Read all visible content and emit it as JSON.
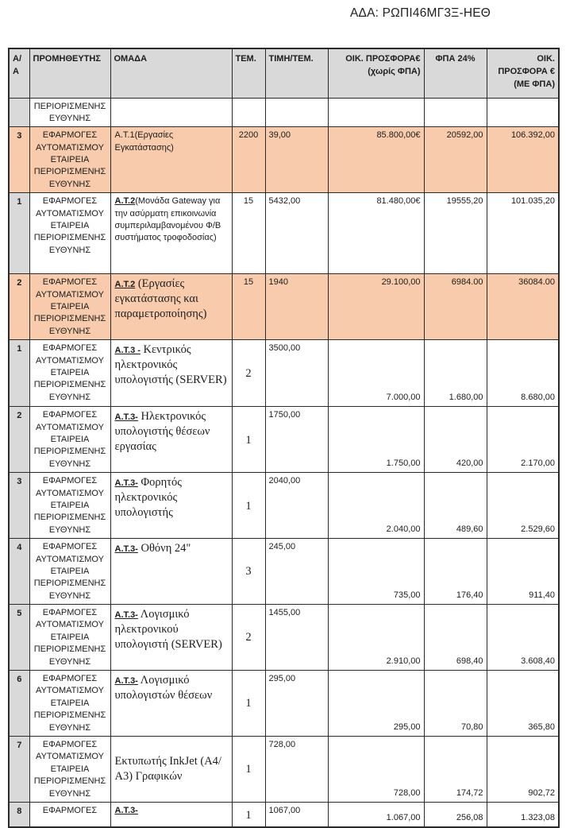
{
  "page": {
    "ada": "ΑΔΑ: ΡΩΠΙ46ΜΓ3Ξ-ΗΕΘ"
  },
  "colors": {
    "highlight_row": "#F7CBAC",
    "header_bg": "#D9D9D9",
    "border": "#2A2A2A"
  },
  "table": {
    "headers": {
      "aa": "Α/Α",
      "supplier": "ΠΡΟΜΗΘΕΥΤΗΣ",
      "group": "ΟΜΑΔΑ",
      "qty": "ΤΕΜ.",
      "unit_price": "ΤΙΜΗ/ΤΕΜ.",
      "offer_net": "ΟΙΚ. ΠΡΟΣΦΟΡΑ€(χωρίς ΦΠΑ)",
      "vat": "ΦΠΑ 24%",
      "offer_gross": "ΟΙΚ. ΠΡΟΣΦΟΡΑ € (ΜΕ ΦΠΑ)"
    },
    "rows": [
      {
        "aa": "",
        "supplier": "ΠΕΡΙΟΡΙΣΜΕΝΗΣ ΕΥΘΥΝΗΣ",
        "group_code": "",
        "group_desc": "",
        "qty": "",
        "unit_price": "",
        "offer_net": "",
        "vat": "",
        "offer_gross": "",
        "highlighted": false
      },
      {
        "aa": "3",
        "supplier": "ΕΦΑΡΜΟΓΕΣ ΑΥΤΟΜΑΤΙΣΜΟΥ ΕΤΑΙΡΕΙΑ ΠΕΡΙΟΡΙΣΜΕΝΗΣ ΕΥΘΥΝΗΣ",
        "group_code": "",
        "group_desc": "Α.Τ.1(Εργασίες Εγκατάστασης)",
        "qty": "2200",
        "unit_price": "39,00",
        "offer_net": "85.800,00€",
        "vat": "20592,00",
        "offer_gross": "106.392,00",
        "highlighted": true
      },
      {
        "aa": "1",
        "supplier": "ΕΦΑΡΜΟΓΕΣ ΑΥΤΟΜΑΤΙΣΜΟΥ ΕΤΑΙΡΕΙΑ ΠΕΡΙΟΡΙΣΜΕΝΗΣ ΕΥΘΥΝΗΣ",
        "group_code": "Α.Τ.2",
        "group_desc": "(Μονάδα Gateway για την ασύρματη επικοινωνία συμπεριλαμβανομένου Φ/Β συστήματος τροφοδοσίας)",
        "qty": "15",
        "unit_price": "5432,00",
        "offer_net": "81.480,00€",
        "vat": "19555,20",
        "offer_gross": "101.035,20",
        "highlighted": false
      },
      {
        "aa": "2",
        "supplier": "ΕΦΑΡΜΟΓΕΣ ΑΥΤΟΜΑΤΙΣΜΟΥ ΕΤΑΙΡΕΙΑ ΠΕΡΙΟΡΙΣΜΕΝΗΣ ΕΥΘΥΝΗΣ",
        "group_code": "Α.Τ.2",
        "group_desc": " (Εργασίες εγκατάστασης και παραμετροποίησης)",
        "qty": "15",
        "unit_price": "1940",
        "offer_net": "29.100,00",
        "vat": "6984.00",
        "offer_gross": "36084.00",
        "highlighted": true
      },
      {
        "aa": "1",
        "supplier": "ΕΦΑΡΜΟΓΕΣ ΑΥΤΟΜΑΤΙΣΜΟΥ ΕΤΑΙΡΕΙΑ ΠΕΡΙΟΡΙΣΜΕΝΗΣ ΕΥΘΥΝΗΣ",
        "group_code": "Α.Τ.3 -",
        "group_desc": " Κεντρικός ηλεκτρονικός υπολογιστής (SERVER)",
        "qty": "2",
        "unit_price": "3500,00",
        "offer_net": "7.000,00",
        "vat": "1.680,00",
        "offer_gross": "8.680,00",
        "highlighted": false
      },
      {
        "aa": "2",
        "supplier": "ΕΦΑΡΜΟΓΕΣ ΑΥΤΟΜΑΤΙΣΜΟΥ ΕΤΑΙΡΕΙΑ ΠΕΡΙΟΡΙΣΜΕΝΗΣ ΕΥΘΥΝΗΣ",
        "group_code": "Α.Τ.3-",
        "group_desc": " Ηλεκτρονικός υπολογιστής θέσεων εργασίας",
        "qty": "1",
        "unit_price": "1750,00",
        "offer_net": "1.750,00",
        "vat": "420,00",
        "offer_gross": "2.170,00",
        "highlighted": false
      },
      {
        "aa": "3",
        "supplier": "ΕΦΑΡΜΟΓΕΣ ΑΥΤΟΜΑΤΙΣΜΟΥ ΕΤΑΙΡΕΙΑ ΠΕΡΙΟΡΙΣΜΕΝΗΣ ΕΥΘΥΝΗΣ",
        "group_code": "Α.Τ.3-",
        "group_desc": " Φορητός ηλεκτρονικός υπολογιστής",
        "qty": "1",
        "unit_price": "2040,00",
        "offer_net": "2.040,00",
        "vat": "489,60",
        "offer_gross": "2.529,60",
        "highlighted": false
      },
      {
        "aa": "4",
        "supplier": "ΕΦΑΡΜΟΓΕΣ ΑΥΤΟΜΑΤΙΣΜΟΥ ΕΤΑΙΡΕΙΑ ΠΕΡΙΟΡΙΣΜΕΝΗΣ ΕΥΘΥΝΗΣ",
        "group_code": "Α.Τ.3-",
        "group_desc": " Οθόνη 24\"",
        "qty": "3",
        "unit_price": "245,00",
        "offer_net": "735,00",
        "vat": "176,40",
        "offer_gross": "911,40",
        "highlighted": false
      },
      {
        "aa": "5",
        "supplier": "ΕΦΑΡΜΟΓΕΣ ΑΥΤΟΜΑΤΙΣΜΟΥ ΕΤΑΙΡΕΙΑ ΠΕΡΙΟΡΙΣΜΕΝΗΣ ΕΥΘΥΝΗΣ",
        "group_code": "Α.Τ.3-",
        "group_desc": " Λογισμικό ηλεκτρονικού υπολογιστή (SERVER)",
        "qty": "2",
        "unit_price": "1455,00",
        "offer_net": "2.910,00",
        "vat": "698,40",
        "offer_gross": "3.608,40",
        "highlighted": false
      },
      {
        "aa": "6",
        "supplier": "ΕΦΑΡΜΟΓΕΣ ΑΥΤΟΜΑΤΙΣΜΟΥ ΕΤΑΙΡΕΙΑ ΠΕΡΙΟΡΙΣΜΕΝΗΣ ΕΥΘΥΝΗΣ",
        "group_code": "Α.Τ.3-",
        "group_desc": " Λογισμικό υπολογιστών θέσεων",
        "qty": "1",
        "unit_price": "295,00",
        "offer_net": "295,00",
        "vat": "70,80",
        "offer_gross": "365,80",
        "highlighted": false
      },
      {
        "aa": "7",
        "supplier": "ΕΦΑΡΜΟΓΕΣ ΑΥΤΟΜΑΤΙΣΜΟΥ ΕΤΑΙΡΕΙΑ ΠΕΡΙΟΡΙΣΜΕΝΗΣ ΕΥΘΥΝΗΣ",
        "group_code": "",
        "group_desc": "Εκτυπωτής InkJet (Α4/Α3) Γραφικών",
        "qty": "1",
        "unit_price": "728,00",
        "offer_net": "728,00",
        "vat": "174,72",
        "offer_gross": "902,72",
        "highlighted": false
      },
      {
        "aa": "8",
        "supplier": "ΕΦΑΡΜΟΓΕΣ",
        "group_code": "Α.Τ.3-",
        "group_desc": "",
        "qty": "1",
        "unit_price": "1067,00",
        "offer_net": "1.067,00",
        "vat": "256,08",
        "offer_gross": "1.323,08",
        "highlighted": false
      }
    ]
  }
}
